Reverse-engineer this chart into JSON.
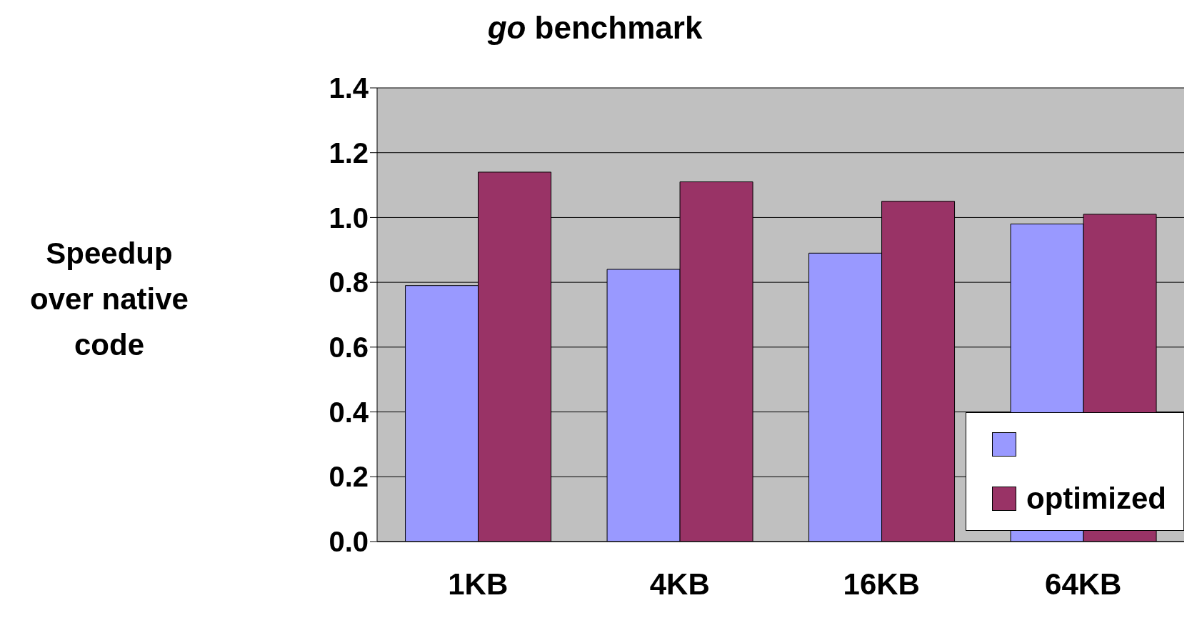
{
  "chart_data": {
    "type": "bar",
    "title": "go benchmark",
    "ylabel": "Speedup over native code",
    "categories": [
      "1KB",
      "4KB",
      "16KB",
      "64KB"
    ],
    "series": [
      {
        "color": "#9999ff",
        "values": [
          0.79,
          0.84,
          0.89,
          0.98
        ]
      },
      {
        "name": "optimized",
        "color": "#993366",
        "values": [
          1.14,
          1.11,
          1.05,
          1.01
        ]
      }
    ],
    "ylim": [
      0,
      1.4
    ],
    "yticks": [
      {
        "value": 0,
        "label": "0.0"
      },
      0.2,
      0.4,
      0.6,
      0.8,
      {
        "value": 1,
        "label": "1.0"
      },
      1.2,
      1.4
    ],
    "grid": "y",
    "legend": "bottom right"
  }
}
